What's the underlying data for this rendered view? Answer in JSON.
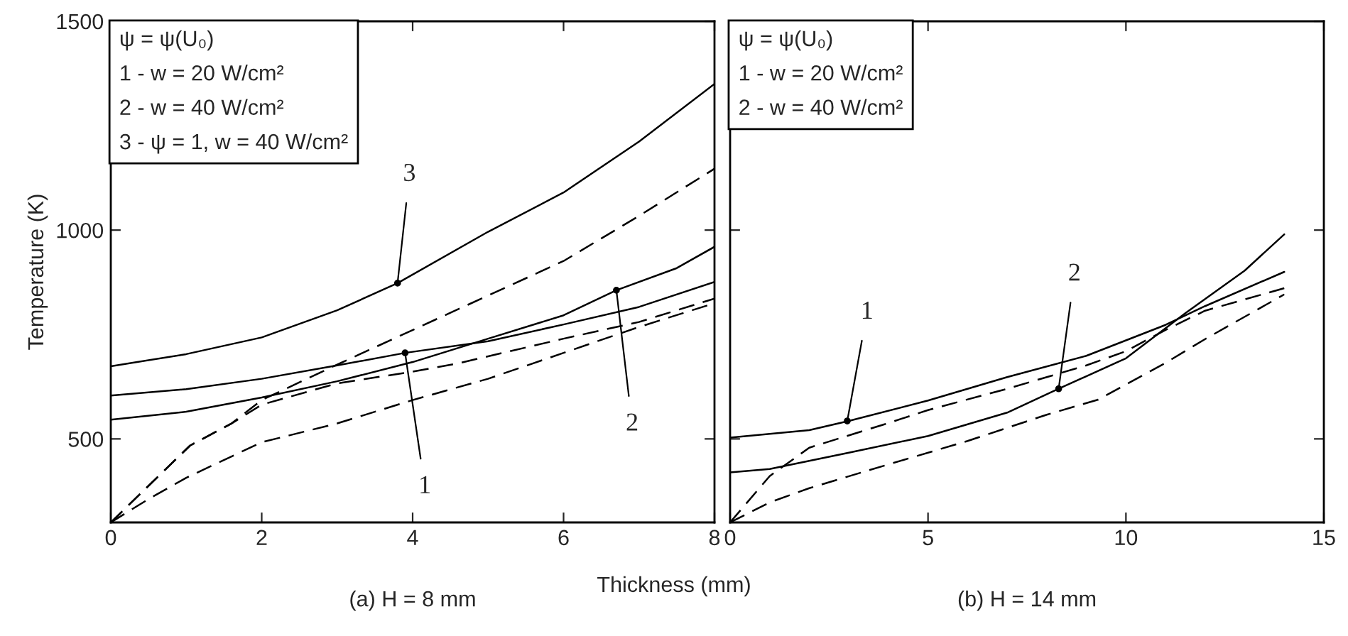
{
  "chart_data": [
    {
      "type": "line",
      "title": "(a) H = 8 mm",
      "xlabel": "Thickness (mm)",
      "ylabel": "Temperature (K)",
      "xlim": [
        0,
        8
      ],
      "xticks": [
        0,
        2,
        4,
        6,
        8
      ],
      "ylim": [
        300,
        1500
      ],
      "yticks": [
        500,
        1000,
        1500
      ],
      "grid": false,
      "legend": false,
      "annotations": [
        "ψ = ψ(U₀)\n1 - w = 20 W/cm²\n2 - w = 40 W/cm²\n3 - ψ = 1, w = 40 W/cm²",
        {
          "text": "3",
          "x": 3.8,
          "y": 873
        },
        {
          "text": "1",
          "x": 3.9,
          "y": 706
        },
        {
          "text": "2",
          "x": 6.7,
          "y": 856
        }
      ],
      "series": [
        {
          "color": "#000000",
          "line_style": "solid",
          "x": [
            0,
            1,
            2,
            3,
            3.8,
            5,
            6,
            7,
            8
          ],
          "values": [
            674,
            703,
            743,
            808,
            873,
            996,
            1090,
            1212,
            1350
          ]
        },
        {
          "color": "#000000",
          "line_style": "dashed",
          "x": [
            0,
            1.05,
            1.6,
            2,
            3,
            4.5,
            6,
            7,
            8
          ],
          "values": [
            300,
            484,
            537,
            593,
            678,
            802,
            926,
            1034,
            1147
          ]
        },
        {
          "color": "#000000",
          "line_style": "solid",
          "x": [
            0,
            1,
            2,
            3,
            3.9,
            5,
            6,
            7,
            8
          ],
          "values": [
            604,
            619,
            644,
            676,
            706,
            734,
            774,
            816,
            876
          ]
        },
        {
          "color": "#000000",
          "line_style": "dashed",
          "x": [
            0,
            1.05,
            1.6,
            2,
            3,
            4,
            4.58,
            6,
            7,
            8
          ],
          "values": [
            300,
            484,
            537,
            582,
            633,
            661,
            680,
            740,
            780,
            836
          ]
        },
        {
          "color": "#000000",
          "line_style": "solid",
          "x": [
            0,
            1,
            2,
            3,
            4,
            5,
            6,
            6.7,
            7.5,
            8
          ],
          "values": [
            546,
            565,
            599,
            638,
            684,
            740,
            796,
            856,
            909,
            960
          ]
        },
        {
          "color": "#000000",
          "line_style": "dashed",
          "x": [
            0,
            0.5,
            1,
            2,
            3,
            4,
            5,
            6,
            6.37,
            7,
            8
          ],
          "values": [
            300,
            356,
            407,
            492,
            537,
            593,
            644,
            706,
            729,
            768,
            825
          ]
        }
      ]
    },
    {
      "type": "line",
      "title": "(b) H = 14 mm",
      "tick_labels": "x",
      "xlim": [
        0,
        15
      ],
      "xticks": [
        0,
        5,
        10,
        15
      ],
      "ylim": [
        300,
        1500
      ],
      "yticks": [
        500,
        1000,
        1500
      ],
      "grid": false,
      "legend": false,
      "annotations": [
        "ψ = ψ(U₀)\n1 - w = 20 W/cm²\n2 - w = 40 W/cm²",
        {
          "text": "1",
          "x": 2.96,
          "y": 543
        },
        {
          "text": "2",
          "x": 8.3,
          "y": 620
        }
      ],
      "series": [
        {
          "color": "#000000",
          "line_style": "solid",
          "x": [
            0,
            2,
            3,
            5,
            7,
            9,
            10,
            11,
            12,
            14
          ],
          "values": [
            503,
            521,
            543,
            592,
            648,
            699,
            736,
            773,
            818,
            900
          ]
        },
        {
          "color": "#000000",
          "line_style": "dashed",
          "x": [
            0,
            1,
            2,
            3.9,
            5,
            7,
            9,
            10,
            11,
            12,
            14
          ],
          "values": [
            300,
            411,
            479,
            535,
            569,
            620,
            676,
            710,
            761,
            807,
            861
          ]
        },
        {
          "color": "#000000",
          "line_style": "solid",
          "x": [
            0,
            1,
            3,
            5,
            7,
            8.3,
            10,
            11.5,
            13,
            14
          ],
          "values": [
            420,
            428,
            467,
            507,
            563,
            620,
            693,
            801,
            903,
            990
          ]
        },
        {
          "color": "#000000",
          "line_style": "dashed",
          "x": [
            0,
            1,
            2,
            4,
            6,
            8,
            9.3,
            11,
            12,
            14
          ],
          "values": [
            300,
            348,
            382,
            439,
            495,
            558,
            594,
            682,
            739,
            846
          ]
        }
      ]
    }
  ]
}
